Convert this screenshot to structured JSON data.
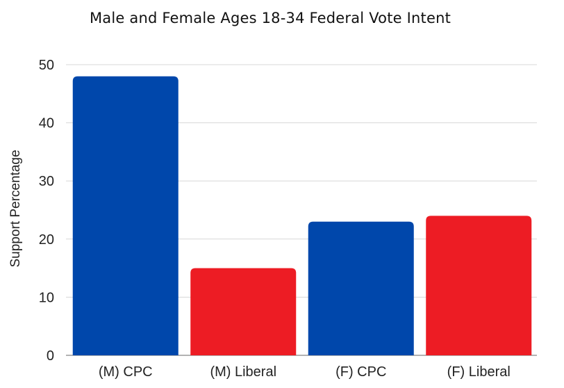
{
  "chart_data": {
    "type": "bar",
    "title": "Male and Female Ages 18-34 Federal Vote Intent",
    "xlabel": "",
    "ylabel": "Support Percentage",
    "categories": [
      "(M) CPC",
      "(M) Liberal",
      "(F) CPC",
      "(F) Liberal"
    ],
    "values": [
      48,
      15,
      23,
      24
    ],
    "bar_colors": [
      "#0047AB",
      "#ED1C24",
      "#0047AB",
      "#ED1C24"
    ],
    "ylim": [
      0,
      50
    ],
    "yticks": [
      "0",
      "10",
      "20",
      "30",
      "40",
      "50"
    ],
    "grid": true,
    "legend": "none"
  }
}
